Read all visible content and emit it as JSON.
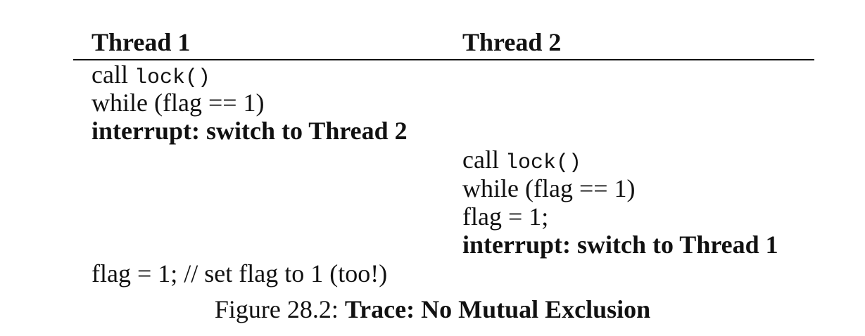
{
  "table": {
    "headers": [
      "Thread 1",
      "Thread 2"
    ],
    "rows": [
      {
        "thread1_prefix": "call ",
        "thread1_code": "lock()"
      },
      {
        "thread1": "while (flag == 1)"
      },
      {
        "thread1": "interrupt: switch to Thread 2"
      },
      {
        "thread2_prefix": "call ",
        "thread2_code": "lock()"
      },
      {
        "thread2": "while (flag == 1)"
      },
      {
        "thread2": "flag = 1;"
      },
      {
        "thread2": "interrupt: switch to Thread 1"
      },
      {
        "thread1": "flag = 1; // set flag to 1 (too!)"
      }
    ]
  },
  "caption": {
    "label": "Figure 28.2: ",
    "title": "Trace: No Mutual Exclusion"
  }
}
